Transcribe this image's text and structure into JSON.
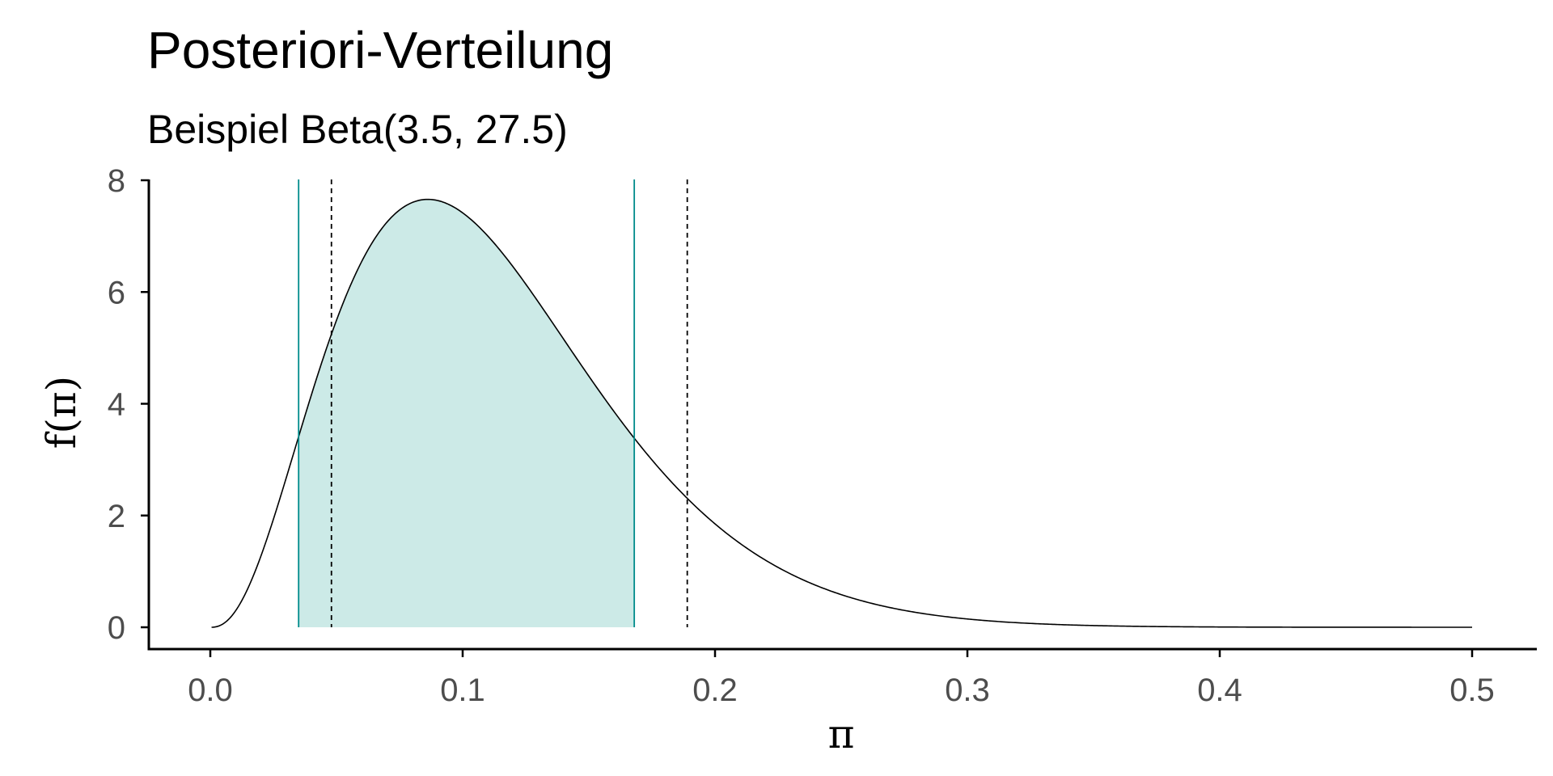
{
  "chart_data": {
    "type": "area",
    "title": "Posteriori-Verteilung",
    "subtitle": "Beispiel Beta(3.5, 27.5)",
    "xlabel": "π",
    "ylabel": "f(π)",
    "distribution": {
      "family": "Beta",
      "alpha": 3.5,
      "beta": 27.5
    },
    "xlim": [
      0,
      0.5
    ],
    "ylim": [
      0,
      8
    ],
    "x_ticks": [
      0.0,
      0.1,
      0.2,
      0.3,
      0.4,
      0.5
    ],
    "x_tick_labels": [
      "0.0",
      "0.1",
      "0.2",
      "0.3",
      "0.4",
      "0.5"
    ],
    "y_ticks": [
      0,
      2,
      4,
      6,
      8
    ],
    "y_tick_labels": [
      "0",
      "2",
      "4",
      "6",
      "8"
    ],
    "shaded_interval": [
      0.035,
      0.168
    ],
    "solid_vlines": [
      0.035,
      0.168
    ],
    "dashed_vlines": [
      0.048,
      0.189
    ],
    "grid": false,
    "legend": "none",
    "colors": {
      "curve": "#000000",
      "fill": "#cceae7",
      "solid_line": "#008b8b",
      "dashed_line": "#000000",
      "axis": "#000000",
      "tick_text": "#4d4d4d"
    }
  }
}
